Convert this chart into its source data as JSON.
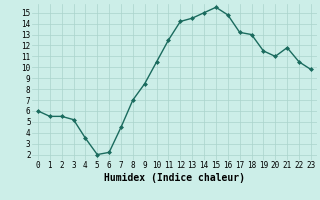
{
  "x": [
    0,
    1,
    2,
    3,
    4,
    5,
    6,
    7,
    8,
    9,
    10,
    11,
    12,
    13,
    14,
    15,
    16,
    17,
    18,
    19,
    20,
    21,
    22,
    23
  ],
  "y": [
    6.0,
    5.5,
    5.5,
    5.2,
    3.5,
    2.0,
    2.2,
    4.5,
    7.0,
    8.5,
    10.5,
    12.5,
    14.2,
    14.5,
    15.0,
    15.5,
    14.8,
    13.2,
    13.0,
    11.5,
    11.0,
    11.8,
    10.5,
    9.8
  ],
  "line_color": "#1a6b5e",
  "marker": "D",
  "marker_size": 2.0,
  "xlabel": "Humidex (Indice chaleur)",
  "xlim": [
    -0.5,
    23.5
  ],
  "ylim": [
    1.5,
    15.8
  ],
  "yticks": [
    2,
    3,
    4,
    5,
    6,
    7,
    8,
    9,
    10,
    11,
    12,
    13,
    14,
    15
  ],
  "xticks": [
    0,
    1,
    2,
    3,
    4,
    5,
    6,
    7,
    8,
    9,
    10,
    11,
    12,
    13,
    14,
    15,
    16,
    17,
    18,
    19,
    20,
    21,
    22,
    23
  ],
  "bg_color": "#cceee8",
  "grid_color": "#aad4cc",
  "tick_fontsize": 5.5,
  "xlabel_fontsize": 7.0,
  "linewidth": 1.0
}
